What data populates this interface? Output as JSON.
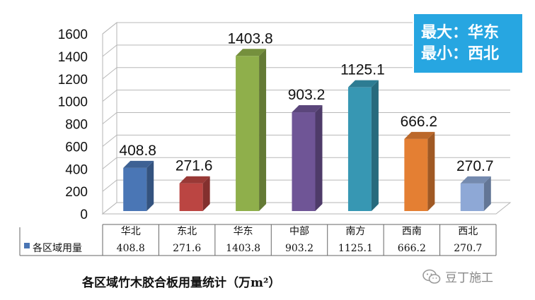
{
  "chart_data": {
    "type": "bar",
    "categories": [
      "华北",
      "东北",
      "华东",
      "中部",
      "南方",
      "西南",
      "西北"
    ],
    "values": [
      408.8,
      271.6,
      1403.8,
      903.2,
      1125.1,
      666.2,
      270.7
    ],
    "value_labels": [
      "408.8",
      "271.6",
      "1403.8",
      "903.2",
      "1125.1",
      "666.2",
      "270.7"
    ],
    "series": [
      {
        "name": "各区域用量",
        "values": [
          408.8,
          271.6,
          1403.8,
          903.2,
          1125.1,
          666.2,
          270.7
        ]
      }
    ],
    "bar_colors": [
      "#4a76b5",
      "#bb4542",
      "#8faf4b",
      "#6f5596",
      "#3797b3",
      "#e47f33",
      "#8ea8d6"
    ],
    "yticks": [
      "0",
      "200",
      "400",
      "600",
      "800",
      "1000",
      "1200",
      "1400",
      "1600"
    ],
    "ylim": [
      0,
      1600
    ],
    "grid": true,
    "data_table": true,
    "title": "各区域竹木胶合板用量统计（万m²）"
  },
  "callout": {
    "line1": "最大：华东",
    "line2": "最小：西北"
  },
  "watermark": {
    "text": "豆丁施工",
    "icon": "wechat-icon"
  }
}
